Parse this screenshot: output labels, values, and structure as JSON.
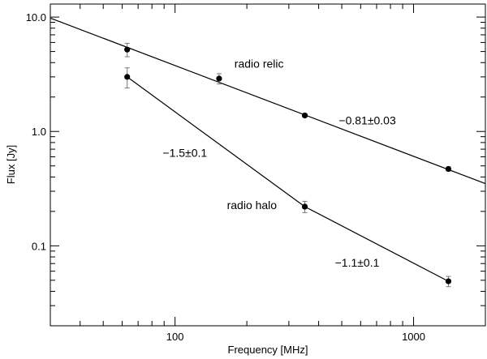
{
  "chart_data": {
    "type": "scatter",
    "xscale": "log",
    "yscale": "log",
    "xlim": [
      30,
      2000
    ],
    "ylim": [
      0.02,
      13
    ],
    "xlabel": "Frequency [MHz]",
    "ylabel": "Flux [Jy]",
    "xticks": [
      {
        "value": 100,
        "label": "100"
      },
      {
        "value": 1000,
        "label": "1000"
      }
    ],
    "yticks": [
      {
        "value": 0.1,
        "label": "0.1"
      },
      {
        "value": 1.0,
        "label": "1.0"
      },
      {
        "value": 10.0,
        "label": "10.0"
      }
    ],
    "grid": false,
    "series": [
      {
        "name": "radio relic",
        "x": [
          63,
          153,
          350,
          1400
        ],
        "y": [
          5.2,
          2.9,
          1.38,
          0.47
        ],
        "err": [
          0.7,
          0.3,
          0.05,
          0.02
        ],
        "fit": {
          "x": [
            30,
            2000
          ],
          "y": [
            9.8,
            0.35
          ]
        }
      },
      {
        "name": "radio halo",
        "x": [
          63,
          350,
          1400
        ],
        "y": [
          3.0,
          0.22,
          0.049
        ],
        "err": [
          0.6,
          0.025,
          0.005
        ],
        "fit": {
          "x": [
            63,
            350,
            1400
          ],
          "y": [
            3.0,
            0.22,
            0.049
          ]
        }
      }
    ],
    "annotations": [
      {
        "text": "radio relic",
        "x": 225,
        "y": 3.6
      },
      {
        "text": "−0.81±0.03",
        "x": 640,
        "y": 1.15
      },
      {
        "text": "−1.5±0.1",
        "x": 110,
        "y": 0.6
      },
      {
        "text": "radio halo",
        "x": 210,
        "y": 0.21
      },
      {
        "text": "−1.1±0.1",
        "x": 580,
        "y": 0.066
      }
    ]
  }
}
